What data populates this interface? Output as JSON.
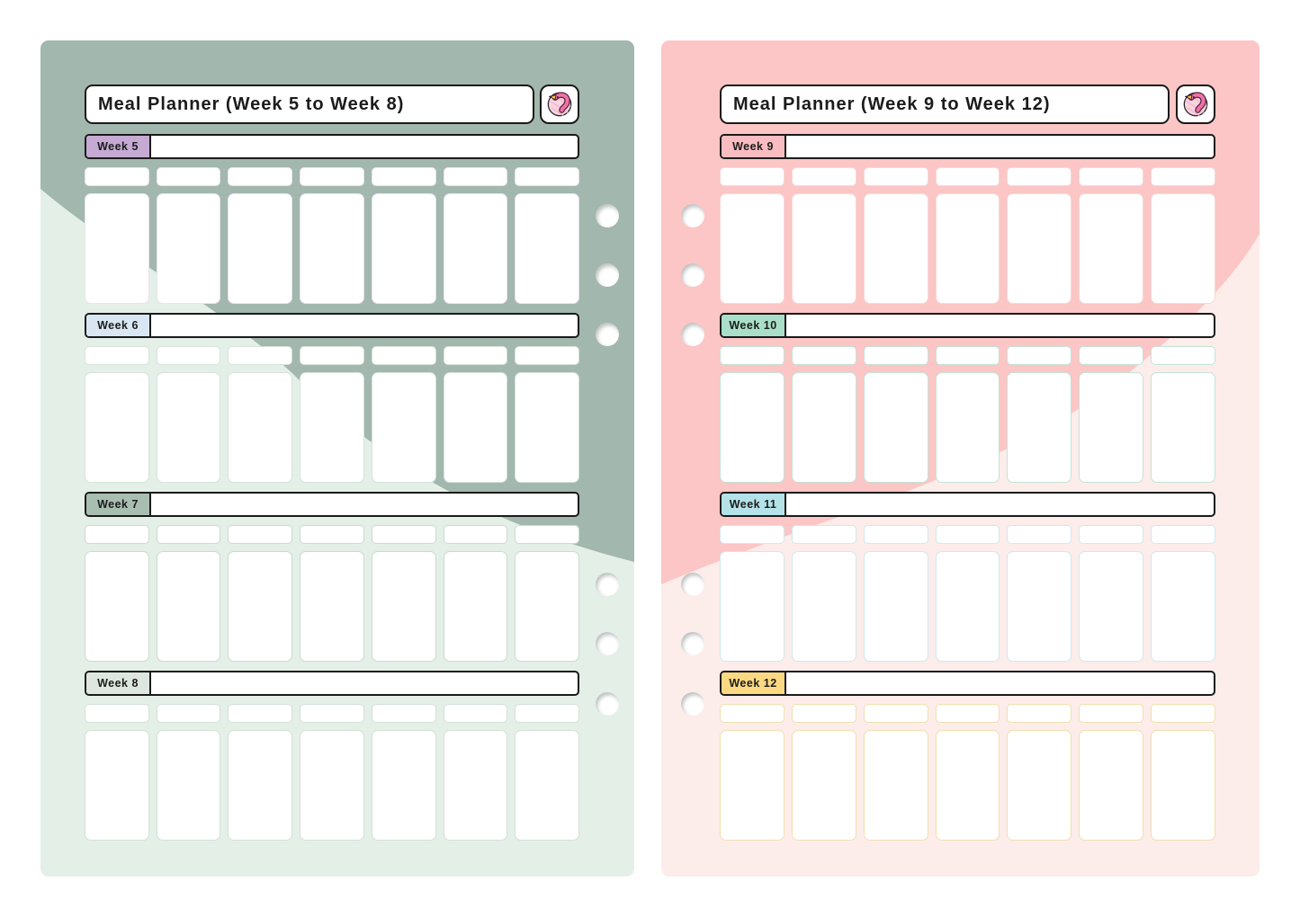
{
  "days_per_week": 7,
  "holes_per_page": 6,
  "pages": [
    {
      "title": "Meal Planner (Week 5 to Week 8)",
      "logo_icon": "flamingo-icon",
      "theme": {
        "page_bg_light": "#e4efe8",
        "page_bg_dark": "#a2b7ad"
      },
      "weeks": [
        {
          "label": "Week 5",
          "label_color": "#c5aad3",
          "cell_border_color": "#e9e3ee"
        },
        {
          "label": "Week 6",
          "label_color": "#d9e7f4",
          "cell_border_color": "#d6e3da"
        },
        {
          "label": "Week 7",
          "label_color": "#a8beb1",
          "cell_border_color": "#cbdbd0"
        },
        {
          "label": "Week 8",
          "label_color": "#dee7df",
          "cell_border_color": "#d5e0d6"
        }
      ]
    },
    {
      "title": "Meal Planner (Week 9 to Week 12)",
      "logo_icon": "flamingo-icon",
      "theme": {
        "page_bg_light": "#fcecea",
        "page_bg_dark": "#fbc6c5"
      },
      "weeks": [
        {
          "label": "Week 9",
          "label_color": "#f9bcc1",
          "cell_border_color": "#f6d9d8"
        },
        {
          "label": "Week 10",
          "label_color": "#a9dfc9",
          "cell_border_color": "#c2e4d5"
        },
        {
          "label": "Week 11",
          "label_color": "#b4e2e9",
          "cell_border_color": "#cfe9ee"
        },
        {
          "label": "Week 12",
          "label_color": "#fbd983",
          "cell_border_color": "#f1e0ae"
        }
      ]
    }
  ]
}
